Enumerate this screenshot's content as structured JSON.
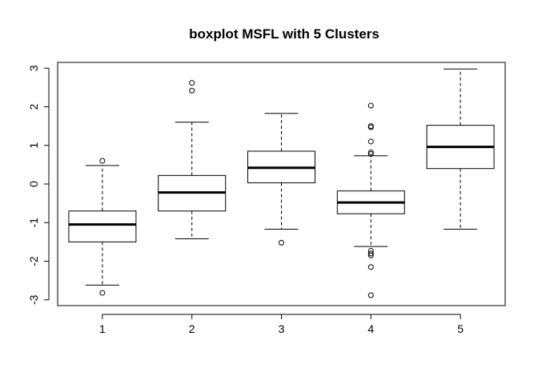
{
  "chart_data": {
    "type": "boxplot",
    "title": "boxplot MSFL with 5 Clusters",
    "xlabel": "",
    "ylabel": "",
    "categories": [
      "1",
      "2",
      "3",
      "4",
      "5"
    ],
    "ylim": [
      -3.15,
      3.15
    ],
    "yticks": [
      -3,
      -2,
      -1,
      0,
      1,
      2,
      3
    ],
    "grid": false,
    "boxes": [
      {
        "category": "1",
        "whisker_low": -2.62,
        "q1": -1.5,
        "median": -1.05,
        "q3": -0.7,
        "whisker_high": 0.48,
        "outliers": [
          0.6,
          -2.82
        ]
      },
      {
        "category": "2",
        "whisker_low": -1.42,
        "q1": -0.7,
        "median": -0.22,
        "q3": 0.22,
        "whisker_high": 1.6,
        "outliers": [
          2.62,
          2.42
        ]
      },
      {
        "category": "3",
        "whisker_low": -1.17,
        "q1": 0.03,
        "median": 0.42,
        "q3": 0.85,
        "whisker_high": 1.83,
        "outliers": [
          -1.52
        ]
      },
      {
        "category": "4",
        "whisker_low": -1.62,
        "q1": -0.77,
        "median": -0.48,
        "q3": -0.18,
        "whisker_high": 0.73,
        "outliers": [
          2.03,
          1.5,
          1.47,
          1.1,
          0.82,
          0.78,
          -1.73,
          -1.8,
          -1.85,
          -2.15,
          -2.88
        ]
      },
      {
        "category": "5",
        "whisker_low": -1.17,
        "q1": 0.4,
        "median": 0.96,
        "q3": 1.52,
        "whisker_high": 2.98,
        "outliers": []
      }
    ]
  }
}
